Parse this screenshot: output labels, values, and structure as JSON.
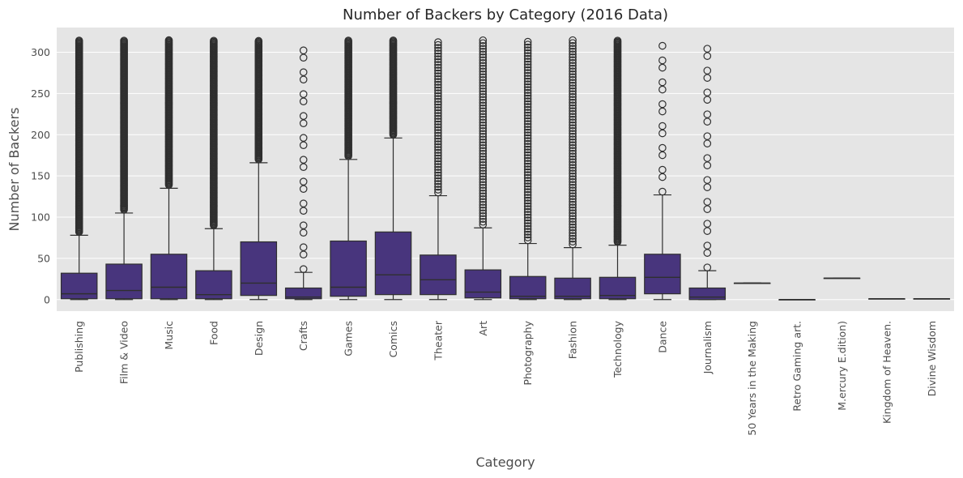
{
  "chart_data": {
    "type": "boxplot",
    "title": "Number of Backers by Category (2016 Data)",
    "xlabel": "Category",
    "ylabel": "Number of Backers",
    "ylim": [
      -14,
      330
    ],
    "yticks": [
      0,
      50,
      100,
      150,
      200,
      250,
      300
    ],
    "grid": true,
    "legend": "none",
    "colors": {
      "box": "#48357d",
      "line": "#2f2f2f",
      "background": "#e5e5e5",
      "grid": "#ffffff"
    },
    "categories": [
      "Publishing",
      "Film & Video",
      "Music",
      "Food",
      "Design",
      "Crafts",
      "Games",
      "Comics",
      "Theater",
      "Art",
      "Photography",
      "Fashion",
      "Technology",
      "Dance",
      "Journalism",
      "50 Years in the Making",
      "Retro Gaming art.",
      "M.ercury E.dition)",
      "Kingdom of Heaven.",
      "Divine Wisdom"
    ],
    "boxes": [
      {
        "category": "Publishing",
        "min": 0,
        "q1": 1,
        "median": 7,
        "q3": 32,
        "max": 78,
        "outliers_from": 78,
        "outliers_to": 315,
        "outlier_style": "dense"
      },
      {
        "category": "Film & Video",
        "min": 0,
        "q1": 1,
        "median": 11,
        "q3": 43,
        "max": 105,
        "outliers_from": 105,
        "outliers_to": 315,
        "outlier_style": "dense"
      },
      {
        "category": "Music",
        "min": 0,
        "q1": 1,
        "median": 15,
        "q3": 55,
        "max": 135,
        "outliers_from": 135,
        "outliers_to": 315,
        "outlier_style": "dense"
      },
      {
        "category": "Food",
        "min": 0,
        "q1": 1,
        "median": 6,
        "q3": 35,
        "max": 86,
        "outliers_from": 86,
        "outliers_to": 315,
        "outlier_style": "dense"
      },
      {
        "category": "Design",
        "min": 0,
        "q1": 5,
        "median": 20,
        "q3": 70,
        "max": 166,
        "outliers_from": 166,
        "outliers_to": 315,
        "outlier_style": "dense"
      },
      {
        "category": "Crafts",
        "min": 0,
        "q1": 1,
        "median": 3,
        "q3": 14,
        "max": 33,
        "outliers_from": 33,
        "outliers_to": 315,
        "outlier_style": "sparse"
      },
      {
        "category": "Games",
        "min": 0,
        "q1": 4,
        "median": 15,
        "q3": 71,
        "max": 170,
        "outliers_from": 170,
        "outliers_to": 315,
        "outlier_style": "dense"
      },
      {
        "category": "Comics",
        "min": 0,
        "q1": 6,
        "median": 30,
        "q3": 82,
        "max": 196,
        "outliers_from": 196,
        "outliers_to": 315,
        "outlier_style": "dense"
      },
      {
        "category": "Theater",
        "min": 0,
        "q1": 6,
        "median": 24,
        "q3": 54,
        "max": 126,
        "outliers_from": 126,
        "outliers_to": 313,
        "outlier_style": "medium"
      },
      {
        "category": "Art",
        "min": 0,
        "q1": 2,
        "median": 9,
        "q3": 36,
        "max": 87,
        "outliers_from": 87,
        "outliers_to": 315,
        "outlier_style": "medium"
      },
      {
        "category": "Photography",
        "min": 0,
        "q1": 1,
        "median": 4,
        "q3": 28,
        "max": 68,
        "outliers_from": 68,
        "outliers_to": 315,
        "outlier_style": "medium"
      },
      {
        "category": "Fashion",
        "min": 0,
        "q1": 1,
        "median": 4,
        "q3": 26,
        "max": 63,
        "outliers_from": 63,
        "outliers_to": 315,
        "outlier_style": "medium"
      },
      {
        "category": "Technology",
        "min": 0,
        "q1": 1,
        "median": 5,
        "q3": 27,
        "max": 66,
        "outliers_from": 66,
        "outliers_to": 315,
        "outlier_style": "dense"
      },
      {
        "category": "Dance",
        "min": 0,
        "q1": 7,
        "median": 27,
        "q3": 55,
        "max": 127,
        "outliers_from": 127,
        "outliers_to": 310,
        "outlier_style": "sparse"
      },
      {
        "category": "Journalism",
        "min": 0,
        "q1": 0,
        "median": 3,
        "q3": 14,
        "max": 35,
        "outliers_from": 35,
        "outliers_to": 312,
        "outlier_style": "sparse"
      },
      {
        "category": "50 Years in the Making",
        "min": 20,
        "q1": 20,
        "median": 20,
        "q3": 20,
        "max": 20
      },
      {
        "category": "Retro Gaming art.",
        "min": 0,
        "q1": 0,
        "median": 0,
        "q3": 0,
        "max": 0
      },
      {
        "category": "M.ercury E.dition)",
        "min": 26,
        "q1": 26,
        "median": 26,
        "q3": 26,
        "max": 26
      },
      {
        "category": "Kingdom of Heaven.",
        "min": 1,
        "q1": 1,
        "median": 1,
        "q3": 1,
        "max": 1
      },
      {
        "category": "Divine Wisdom",
        "min": 1,
        "q1": 1,
        "median": 1,
        "q3": 1,
        "max": 1
      }
    ]
  }
}
